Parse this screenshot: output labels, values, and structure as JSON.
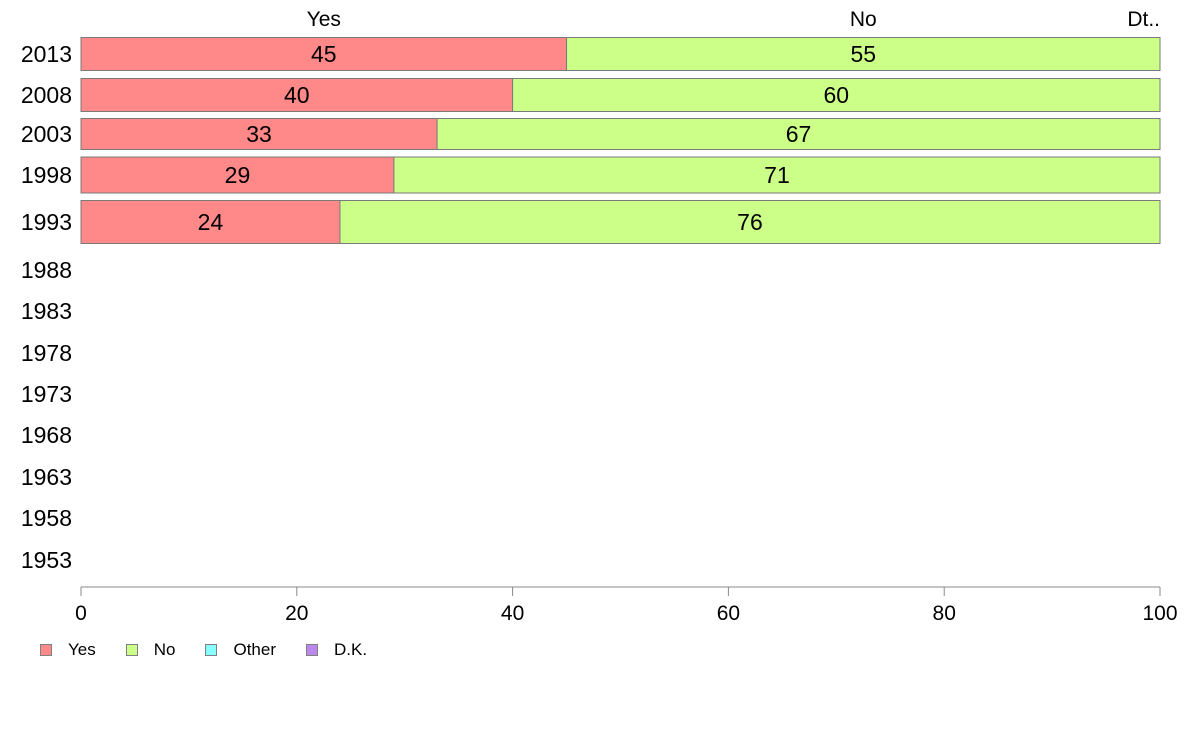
{
  "chart_data": {
    "type": "bar",
    "orientation": "horizontal",
    "stacked": true,
    "categories": [
      "2013",
      "2008",
      "2003",
      "1998",
      "1993",
      "1988",
      "1983",
      "1978",
      "1973",
      "1968",
      "1963",
      "1958",
      "1953"
    ],
    "series": [
      {
        "name": "Yes",
        "color": "#ff8888",
        "values": [
          45,
          40,
          33,
          29,
          24,
          null,
          null,
          null,
          null,
          null,
          null,
          null,
          null
        ]
      },
      {
        "name": "No",
        "color": "#ccff88",
        "values": [
          55,
          60,
          67,
          71,
          76,
          null,
          null,
          null,
          null,
          null,
          null,
          null,
          null
        ]
      },
      {
        "name": "Other",
        "color": "#88ffff",
        "values": [
          0,
          0,
          0,
          0,
          0,
          null,
          null,
          null,
          null,
          null,
          null,
          null,
          null
        ]
      },
      {
        "name": "D.K.",
        "color": "#bb88ee",
        "values": [
          0,
          0,
          0,
          0,
          0,
          null,
          null,
          null,
          null,
          null,
          null,
          null,
          null
        ]
      }
    ],
    "data_labels": [
      [
        "45",
        "55"
      ],
      [
        "40",
        "60"
      ],
      [
        "33",
        "67"
      ],
      [
        "29",
        "71"
      ],
      [
        "24",
        "76"
      ]
    ],
    "top_labels": [
      {
        "text": "Yes",
        "x": 22.5
      },
      {
        "text": "No",
        "x": 72.5
      },
      {
        "text": "Dt..",
        "x": 100
      }
    ],
    "xlim": [
      0,
      100
    ],
    "xticks": [
      0,
      20,
      40,
      60,
      80,
      100
    ],
    "grid": false,
    "legend_position": "bottom-left",
    "title": "",
    "xlabel": "",
    "ylabel": ""
  },
  "legend": [
    {
      "label": "Yes",
      "color": "#ff8888"
    },
    {
      "label": "No",
      "color": "#ccff88"
    },
    {
      "label": "Other",
      "color": "#88ffff"
    },
    {
      "label": "D.K.",
      "color": "#bb88ee"
    }
  ]
}
